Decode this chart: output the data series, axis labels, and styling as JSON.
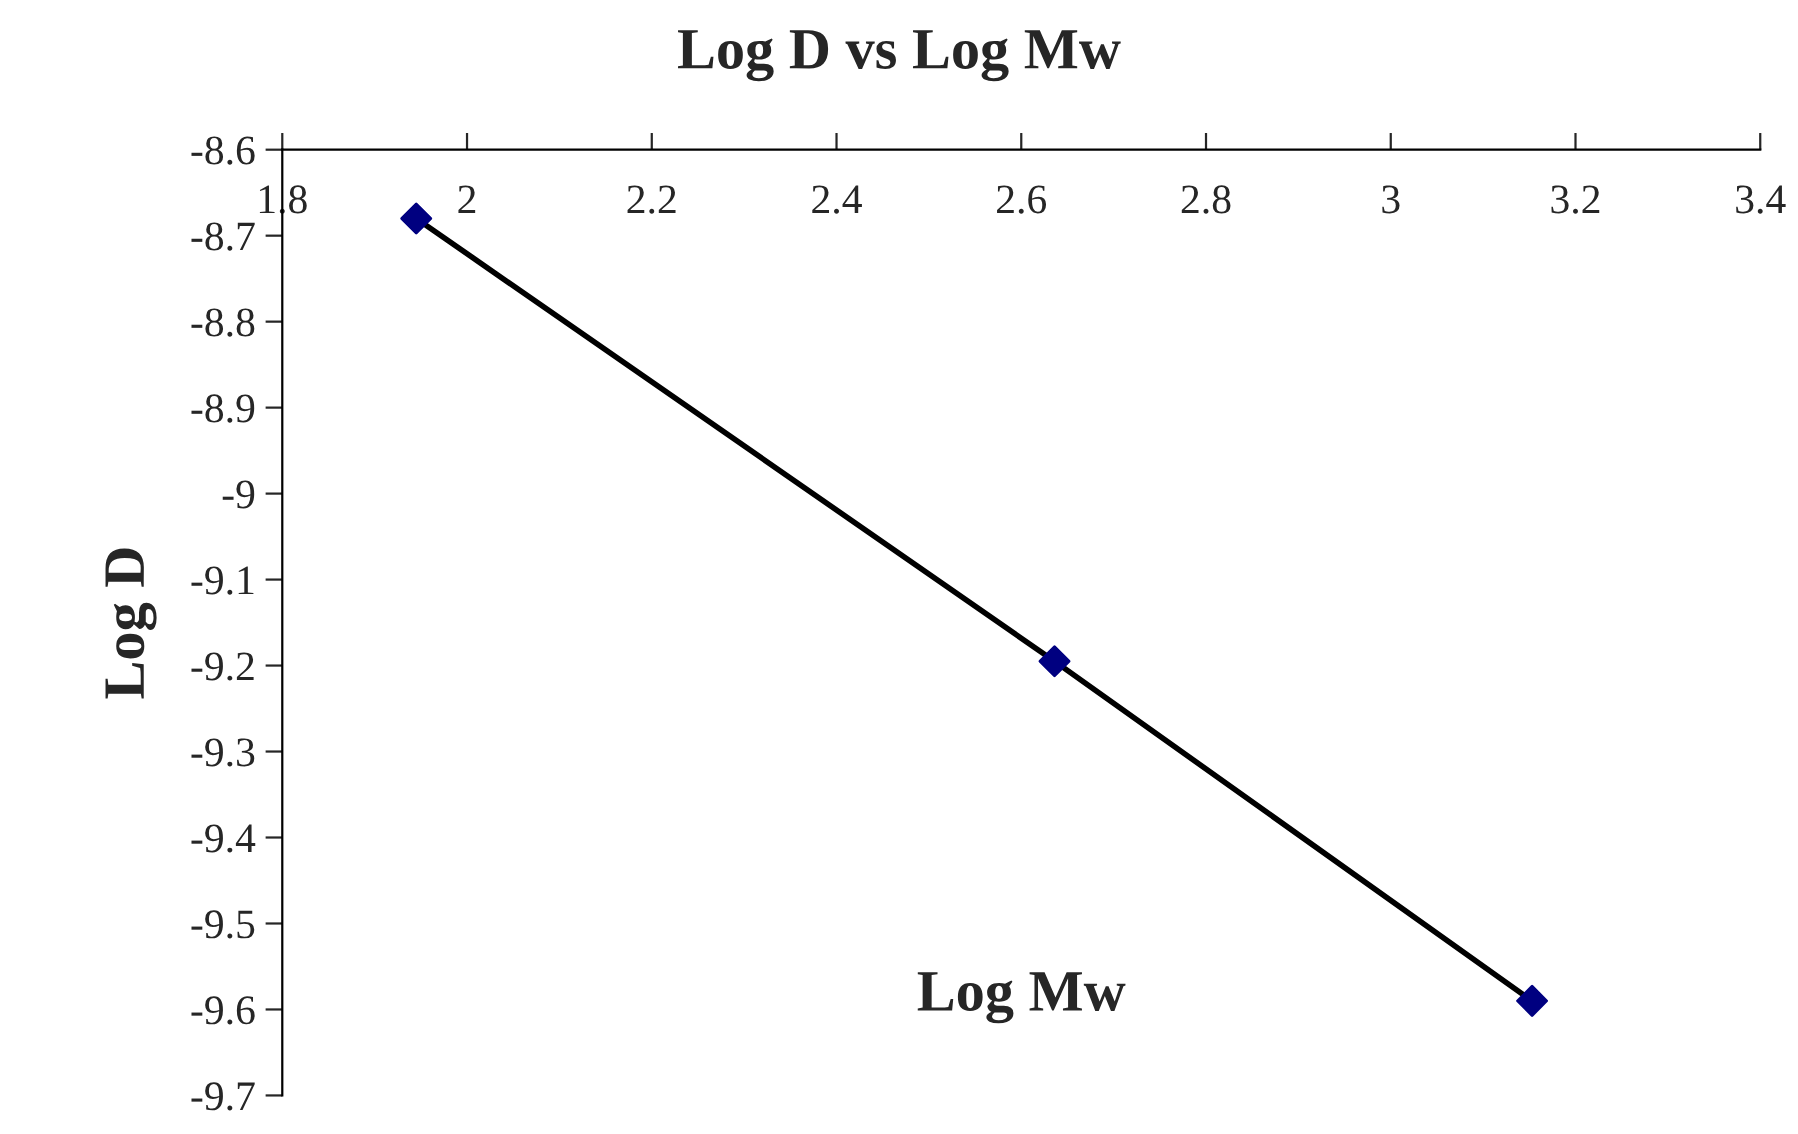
{
  "chart_data": {
    "type": "scatter",
    "title": "Log D vs Log Mw",
    "xlabel": "Log Mw",
    "ylabel": "Log D",
    "series": [
      {
        "color": "#000080",
        "x": [
          1.945,
          2.636,
          3.153
        ],
        "values": [
          -8.68,
          -9.195,
          -9.59
        ],
        "marker": "diamond"
      },
      {
        "type": "line",
        "color": "#000000",
        "x": [
          1.945,
          2.636,
          3.153
        ],
        "values": [
          -8.68,
          -9.195,
          -9.59
        ],
        "marker": "none"
      }
    ],
    "xlim": [
      1.8,
      3.4
    ],
    "xticks": [
      1.8,
      2,
      2.2,
      2.4,
      2.6,
      2.8,
      3,
      3.2,
      3.4
    ],
    "ylim": [
      -9.7,
      -8.6
    ],
    "yticks": [
      -8.6,
      -8.7,
      -8.8,
      -8.9,
      -9,
      -9.1,
      -9.2,
      -9.3,
      -9.4,
      -9.5,
      -9.6,
      -9.7
    ],
    "grid": false,
    "legend": false
  }
}
